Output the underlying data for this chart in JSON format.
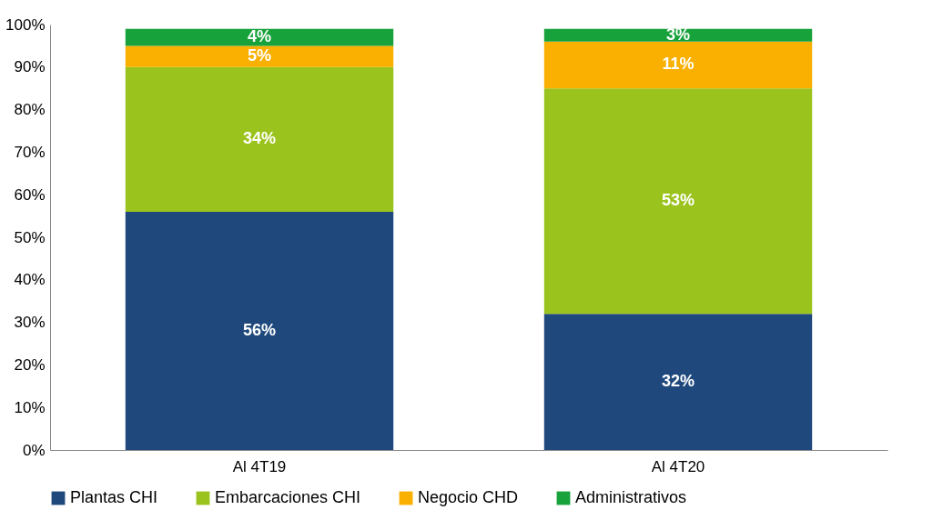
{
  "chart_data": {
    "type": "bar",
    "stacked": true,
    "categories": [
      "Al 4T19",
      "Al 4T20"
    ],
    "series": [
      {
        "name": "Plantas CHI",
        "color": "#1f497d",
        "values": [
          56,
          32
        ],
        "value_labels": [
          "56%",
          "32%"
        ]
      },
      {
        "name": "Embarcaciones CHI",
        "color": "#9bc31d",
        "values": [
          34,
          53
        ],
        "value_labels": [
          "34%",
          "53%"
        ]
      },
      {
        "name": "Negocio CHD",
        "color": "#f9b000",
        "values": [
          5,
          11
        ],
        "value_labels": [
          "5%",
          "11%"
        ]
      },
      {
        "name": "Administrativos",
        "color": "#17a23b",
        "values": [
          4,
          3
        ],
        "value_labels": [
          "4%",
          "3%"
        ]
      }
    ],
    "ylim": [
      0,
      100
    ],
    "yticks": [
      {
        "value": 0,
        "label": "0%"
      },
      {
        "value": 10,
        "label": "10%"
      },
      {
        "value": 20,
        "label": "20%"
      },
      {
        "value": 30,
        "label": "30%"
      },
      {
        "value": 40,
        "label": "40%"
      },
      {
        "value": 50,
        "label": "50%"
      },
      {
        "value": 60,
        "label": "60%"
      },
      {
        "value": 70,
        "label": "70%"
      },
      {
        "value": 80,
        "label": "80%"
      },
      {
        "value": 90,
        "label": "90%"
      },
      {
        "value": 100,
        "label": "100%"
      }
    ],
    "grid": false,
    "legend": "bottom"
  }
}
